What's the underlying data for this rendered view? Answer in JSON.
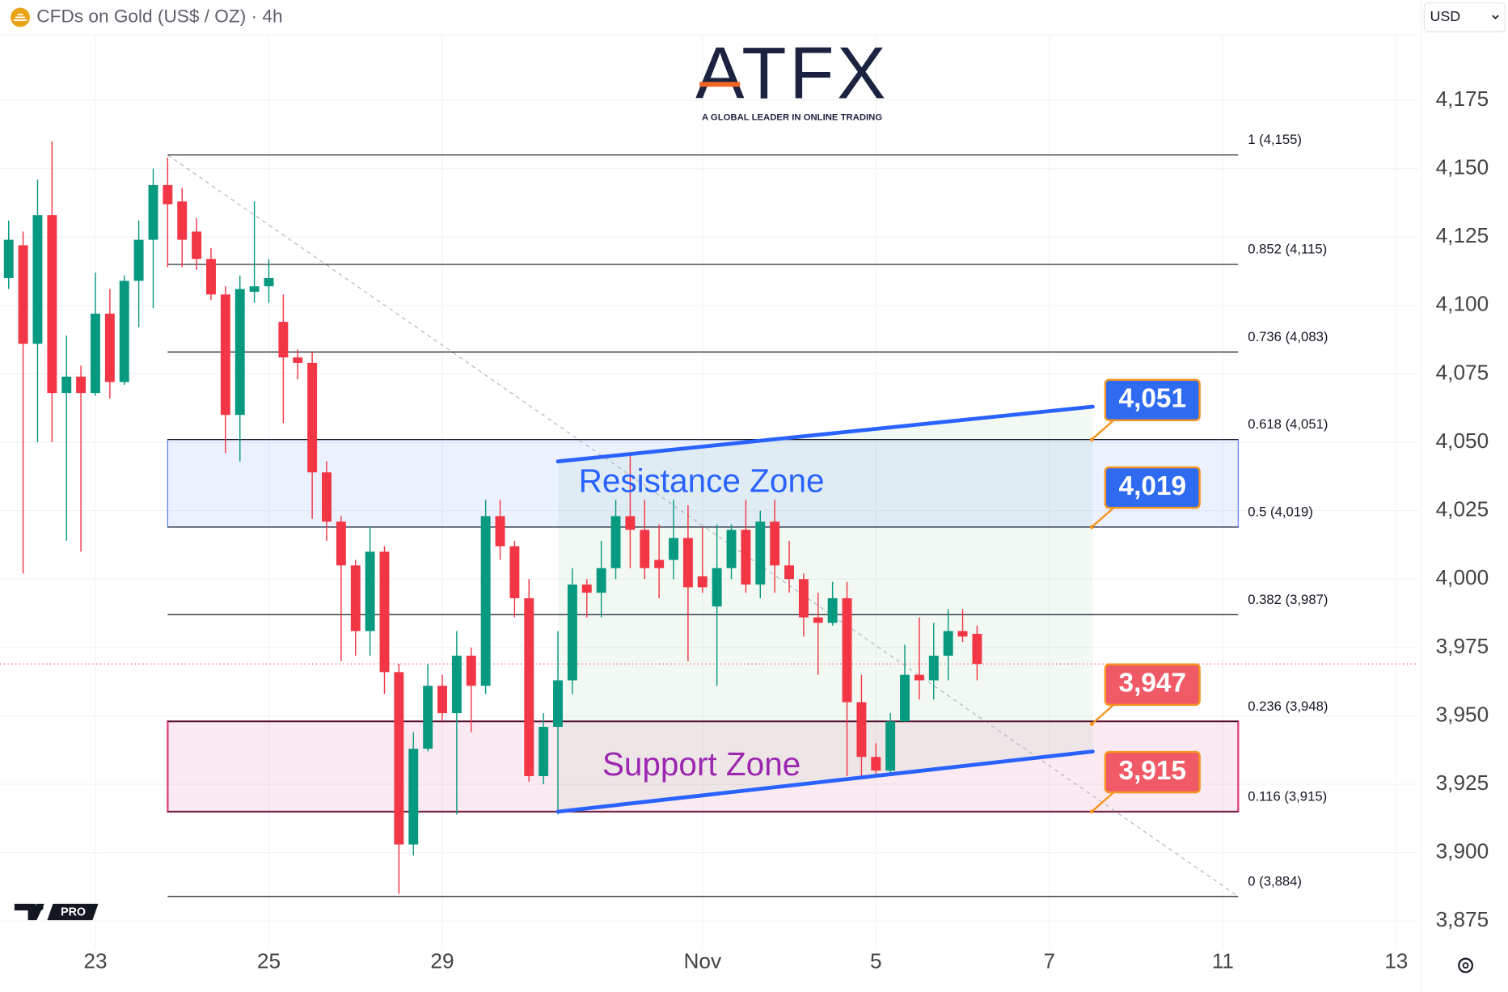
{
  "chart_data": {
    "type": "candlestick",
    "title": "CFDs on Gold (US$ / OZ) · 4h",
    "currency": "USD",
    "x": [
      0,
      1,
      2,
      3,
      4,
      5,
      6,
      7,
      8,
      9,
      10,
      11,
      12,
      13,
      14,
      15,
      16,
      17,
      18,
      19,
      20,
      21,
      22,
      23,
      24,
      25,
      26,
      27,
      28,
      29,
      30,
      31,
      32,
      33,
      34,
      35,
      36,
      37,
      38,
      39,
      40,
      41,
      42,
      43,
      44,
      45,
      46,
      47,
      48,
      49,
      50,
      51,
      52,
      53,
      54,
      55,
      56,
      57,
      58,
      59,
      60,
      61,
      62,
      63,
      64,
      65,
      66,
      67
    ],
    "open": [
      4110,
      4122,
      4086,
      4133,
      4068,
      4074,
      4068,
      4097,
      4072,
      4109,
      4124,
      4144,
      4138,
      4127,
      4117,
      4104,
      4060,
      4105,
      4107,
      4094,
      4081,
      4079,
      4039,
      4021,
      4005,
      3981,
      4010,
      3966,
      3903,
      3938,
      3961,
      3951,
      3972,
      3961,
      4023,
      4012,
      3993,
      3928,
      3946,
      3963,
      3998,
      3995,
      4004,
      4023,
      4018,
      4007,
      4007,
      4015,
      4001,
      3990,
      4004,
      4018,
      3998,
      4021,
      4005,
      4000,
      3986,
      3984,
      3993,
      3955,
      3935,
      3930,
      3948,
      3965,
      3963,
      3972,
      3981,
      3980
    ],
    "high": [
      4131,
      4127,
      4146,
      4160,
      4089,
      4078,
      4112,
      4106,
      4111,
      4131,
      4150,
      4154,
      4143,
      4132,
      4121,
      4107,
      4111,
      4138,
      4117,
      4104,
      4084,
      4083,
      4043,
      4023,
      4007,
      4019,
      4012,
      3969,
      3944,
      3969,
      3965,
      3981,
      3975,
      4029,
      4029,
      4014,
      4000,
      3951,
      3981,
      4004,
      4000,
      4014,
      4029,
      4046,
      4029,
      4020,
      4029,
      4027,
      4019,
      4020,
      4020,
      4029,
      4025,
      4029,
      4014,
      4002,
      3995,
      3999,
      3999,
      3965,
      3940,
      3951,
      3976,
      3986,
      3984,
      3989,
      3989,
      3983
    ],
    "low": [
      4106,
      4002,
      4050,
      4050,
      4014,
      4010,
      4067,
      4066,
      4071,
      4092,
      4099,
      4114,
      4114,
      4113,
      4102,
      4046,
      4043,
      4101,
      4101,
      4057,
      4073,
      4022,
      4014,
      3970,
      3972,
      3972,
      3958,
      3885,
      3899,
      3937,
      3948,
      3914,
      3944,
      3958,
      4007,
      3986,
      3926,
      3925,
      3914,
      3958,
      3986,
      3986,
      4000,
      4004,
      4000,
      3993,
      4000,
      3970,
      3995,
      3961,
      4000,
      3995,
      3993,
      3995,
      3995,
      3979,
      3965,
      3983,
      3928,
      3928,
      3928,
      3929,
      3948,
      3956,
      3956,
      3963,
      3977,
      3963
    ],
    "close": [
      4124,
      4086,
      4133,
      4068,
      4074,
      4068,
      4097,
      4072,
      4109,
      4124,
      4144,
      4137,
      4124,
      4117,
      4104,
      4060,
      4106,
      4107,
      4110,
      4081,
      4079,
      4039,
      4021,
      4005,
      3981,
      4010,
      3966,
      3903,
      3938,
      3961,
      3951,
      3972,
      3961,
      4023,
      4012,
      3993,
      3928,
      3946,
      3963,
      3998,
      3995,
      4004,
      4023,
      4018,
      4004,
      4004,
      4015,
      3997,
      3997,
      4004,
      4018,
      3998,
      4021,
      4005,
      4000,
      3986,
      3984,
      3993,
      3955,
      3935,
      3930,
      3948,
      3965,
      3963,
      3972,
      3981,
      3979,
      3969
    ],
    "up_color": "#089981",
    "down_color": "#f23645",
    "xlim": [
      -0.6,
      97.53
    ],
    "xticks": [
      {
        "value": 6,
        "label": "23"
      },
      {
        "value": 18,
        "label": "25"
      },
      {
        "value": 30,
        "label": "29"
      },
      {
        "value": 48,
        "label": "Nov"
      },
      {
        "value": 60,
        "label": "5"
      },
      {
        "value": 72,
        "label": "7"
      },
      {
        "value": 84,
        "label": "11"
      },
      {
        "value": 96,
        "label": "13"
      }
    ],
    "ylim": [
      3864.8,
      4198.6
    ],
    "yticks": [
      {
        "value": 3875,
        "label": "3,875"
      },
      {
        "value": 3900,
        "label": "3,900"
      },
      {
        "value": 3925,
        "label": "3,925"
      },
      {
        "value": 3950,
        "label": "3,950"
      },
      {
        "value": 3975,
        "label": "3,975"
      },
      {
        "value": 4000,
        "label": "4,000"
      },
      {
        "value": 4025,
        "label": "4,025"
      },
      {
        "value": 4050,
        "label": "4,050"
      },
      {
        "value": 4075,
        "label": "4,075"
      },
      {
        "value": 4100,
        "label": "4,100"
      },
      {
        "value": 4125,
        "label": "4,125"
      },
      {
        "value": 4150,
        "label": "4,150"
      },
      {
        "value": 4175,
        "label": "4,175"
      }
    ],
    "grid": true,
    "fib_levels": [
      {
        "value": 4155,
        "label": "1 (4,155)"
      },
      {
        "value": 4115,
        "label": "0.852 (4,115)"
      },
      {
        "value": 4083,
        "label": "0.736 (4,083)"
      },
      {
        "value": 4051,
        "label": "0.618 (4,051)"
      },
      {
        "value": 4019,
        "label": "0.5 (4,019)"
      },
      {
        "value": 3987,
        "label": "0.382 (3,987)"
      },
      {
        "value": 3948,
        "label": "0.236 (3,948)"
      },
      {
        "value": 3915,
        "label": "0.116 (3,915)"
      },
      {
        "value": 3884,
        "label": "0 (3,884)"
      }
    ],
    "zones": [
      {
        "name": "Resistance Zone",
        "range": [
          4019,
          4051
        ],
        "color": "#2962ff",
        "label_color": "#2962ff"
      },
      {
        "name": "Support Zone",
        "range": [
          3915,
          3948
        ],
        "color": "#d81b60",
        "label_color": "#9c27b0"
      }
    ],
    "trendlines": [
      {
        "x": [
          38,
          75
        ],
        "y": [
          4043,
          4063
        ],
        "color": "#2962ff"
      },
      {
        "x": [
          38,
          75
        ],
        "y": [
          3915,
          3937
        ],
        "color": "#2962ff"
      }
    ],
    "price_labels": [
      {
        "value": 4051,
        "label": "4,051",
        "color": "#2e6bf0"
      },
      {
        "value": 4019,
        "label": "4,019",
        "color": "#2e6bf0"
      },
      {
        "value": 3947,
        "label": "3,947",
        "color": "#f05a66"
      },
      {
        "value": 3915,
        "label": "3,915",
        "color": "#f05a66"
      }
    ]
  },
  "logo": {
    "name": "ATFX",
    "tagline": "A GLOBAL LEADER IN ONLINE TRADING"
  },
  "watermark": "PRO"
}
